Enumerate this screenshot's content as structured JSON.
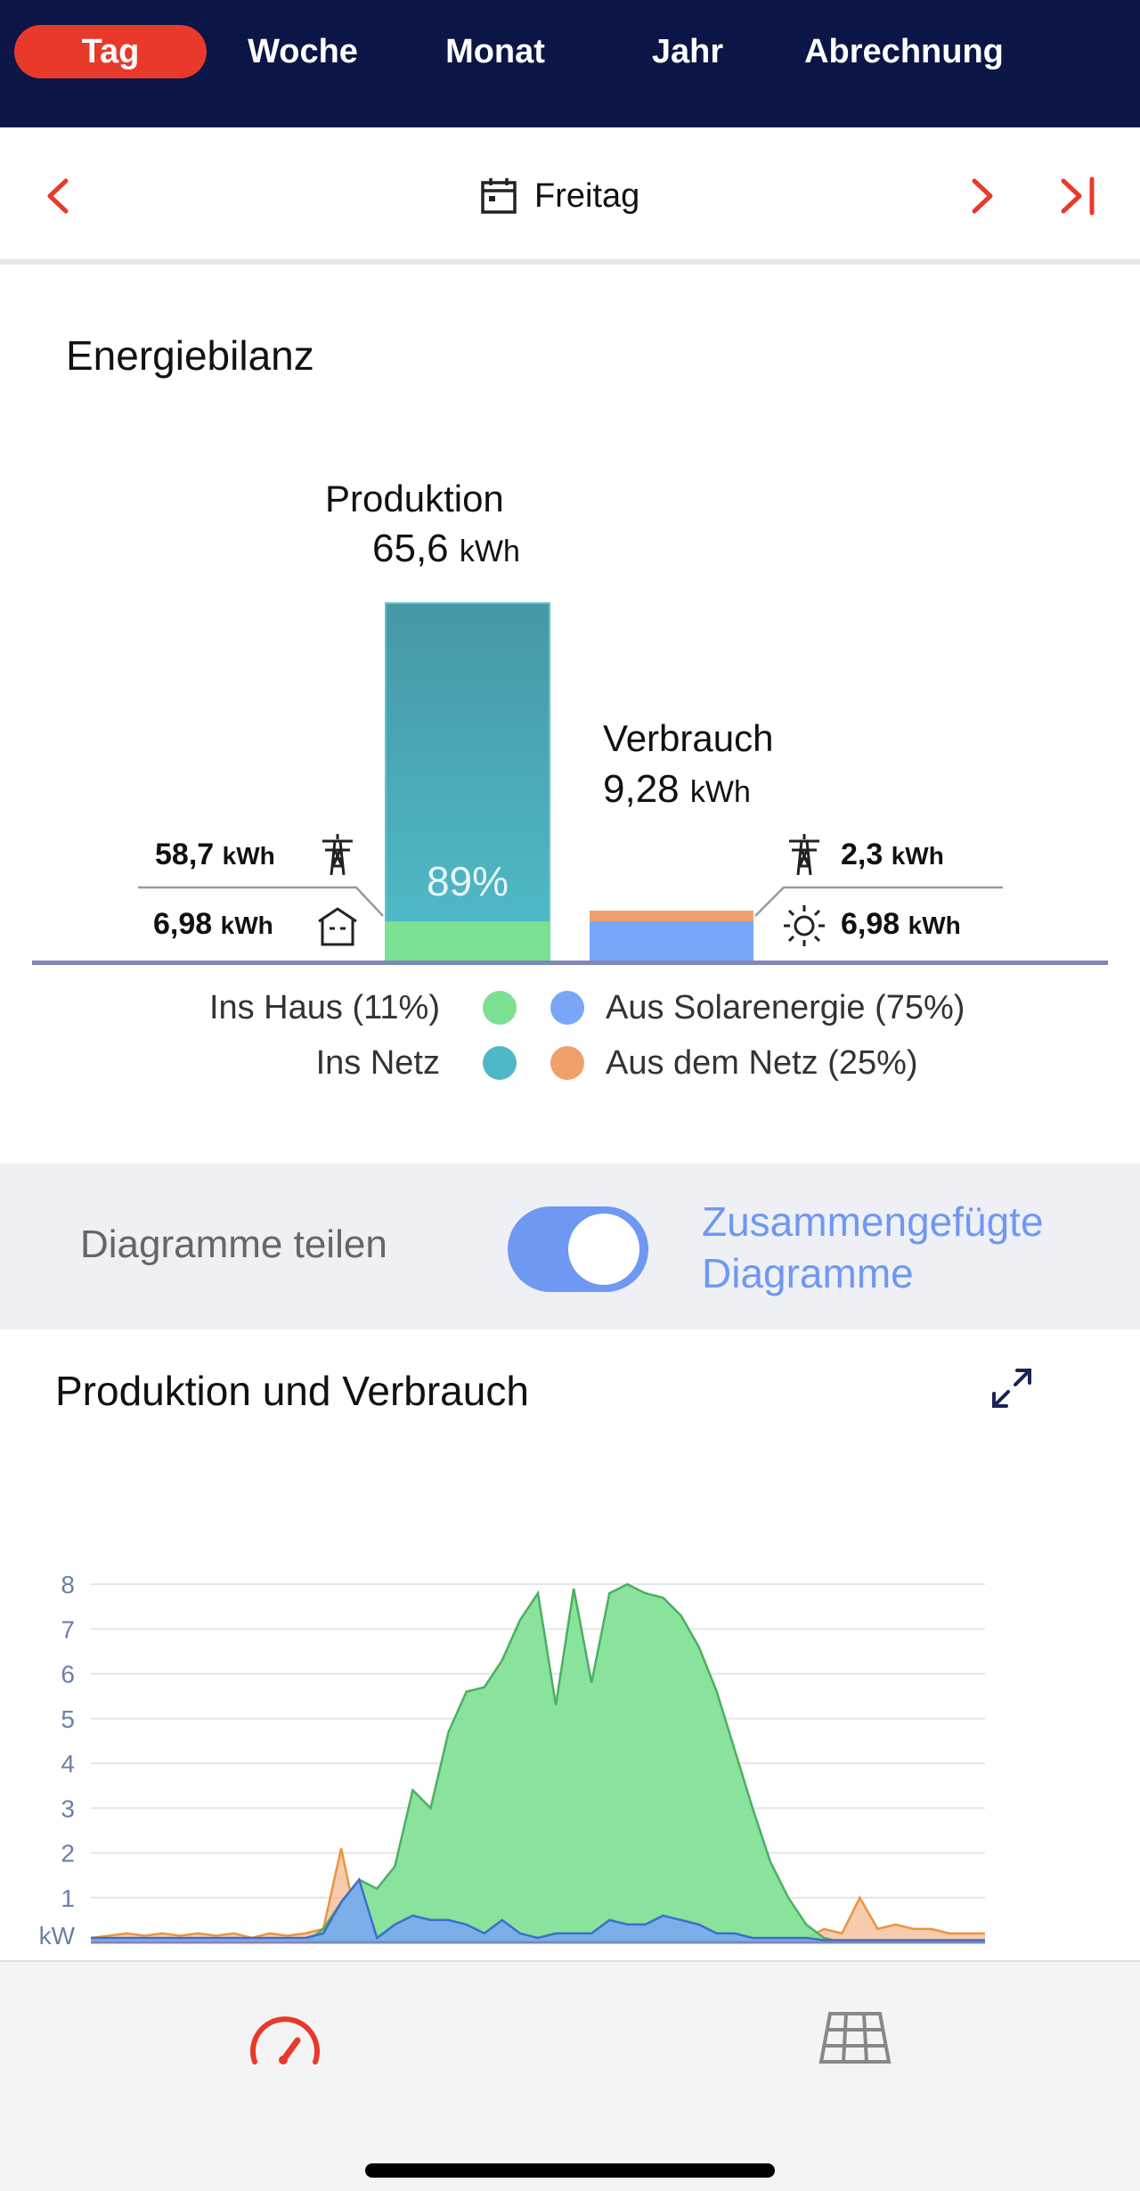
{
  "tabs": [
    {
      "label": "Tag",
      "active": true
    },
    {
      "label": "Woche"
    },
    {
      "label": "Monat"
    },
    {
      "label": "Jahr"
    },
    {
      "label": "Abrechnung"
    }
  ],
  "date_nav": {
    "label": "Freitag",
    "prev_icon": "chevron-left-icon",
    "next_icon": "chevron-right-icon",
    "last_icon": "skip-to-end-icon",
    "calendar_icon": "calendar-icon"
  },
  "energy_balance": {
    "title": "Energiebilanz",
    "production": {
      "label": "Produktion",
      "value": "65,6",
      "unit": "kWh",
      "self_use_share_label": "89%"
    },
    "consumption": {
      "label": "Verbrauch",
      "value": "9,28",
      "unit": "kWh"
    },
    "left": {
      "to_grid": {
        "value": "58,7",
        "unit": "kWh",
        "icon": "power-pylon-icon"
      },
      "to_house": {
        "value": "6,98",
        "unit": "kWh",
        "icon": "house-icon"
      }
    },
    "right": {
      "from_grid": {
        "value": "2,3",
        "unit": "kWh",
        "icon": "power-pylon-icon"
      },
      "from_solar": {
        "value": "6,98",
        "unit": "kWh",
        "icon": "sun-icon"
      }
    },
    "legend": {
      "ins_haus": "Ins Haus (11%)",
      "ins_netz": "Ins Netz",
      "aus_solar": "Aus Solarenergie (75%)",
      "aus_netz": "Aus dem Netz (25%)"
    },
    "colors": {
      "ins_haus": "#7ce092",
      "ins_netz": "#4fb8c6",
      "aus_solar": "#7aa6f7",
      "aus_netz": "#f0a06a"
    }
  },
  "toggle": {
    "left_label": "Diagramme teilen",
    "right_label_line1": "Zusammengefügte",
    "right_label_line2": "Diagramme",
    "on": true
  },
  "chart": {
    "title": "Produktion und Verbrauch",
    "expand_icon": "expand-icon"
  },
  "chart_data": {
    "type": "area",
    "ylabel": "kW",
    "ylim": [
      0,
      8
    ],
    "y_ticks": [
      "1",
      "2",
      "3",
      "4",
      "5",
      "6",
      "7",
      "8"
    ],
    "grid": true,
    "x": [
      0,
      1,
      2,
      3,
      4,
      5,
      6,
      7,
      8,
      9,
      10,
      11,
      12,
      13,
      14,
      15,
      16,
      17,
      18,
      19,
      20,
      21,
      22,
      23,
      24,
      25,
      26,
      27,
      28,
      29,
      30,
      31,
      32,
      33,
      34,
      35,
      36,
      37,
      38,
      39,
      40,
      41,
      42,
      43,
      44,
      45,
      46,
      47,
      48,
      49,
      50
    ],
    "series": [
      {
        "name": "Produktion",
        "color": "#7ce092",
        "values": [
          0,
          0,
          0,
          0,
          0,
          0,
          0,
          0,
          0,
          0,
          0,
          0,
          0,
          0.3,
          0.9,
          1.4,
          1.2,
          1.7,
          3.4,
          3.0,
          4.7,
          5.6,
          5.7,
          6.3,
          7.2,
          7.8,
          5.3,
          7.9,
          5.8,
          7.8,
          8.0,
          7.8,
          7.7,
          7.3,
          6.6,
          5.6,
          4.3,
          3.0,
          1.8,
          1.0,
          0.4,
          0.1,
          0,
          0,
          0,
          0,
          0,
          0,
          0,
          0,
          0
        ]
      },
      {
        "name": "Verbrauch aus Solarenergie",
        "color": "#7aa6f7",
        "values": [
          0.1,
          0.1,
          0.1,
          0.1,
          0.1,
          0.1,
          0.1,
          0.1,
          0.1,
          0.1,
          0.1,
          0.1,
          0.1,
          0.2,
          0.9,
          1.4,
          0.1,
          0.4,
          0.6,
          0.5,
          0.5,
          0.4,
          0.2,
          0.5,
          0.2,
          0.1,
          0.2,
          0.2,
          0.2,
          0.5,
          0.4,
          0.4,
          0.6,
          0.5,
          0.4,
          0.2,
          0.2,
          0.1,
          0.1,
          0.1,
          0.1,
          0.05,
          0.05,
          0.05,
          0.05,
          0.05,
          0.05,
          0.05,
          0.05,
          0.05,
          0.05
        ]
      },
      {
        "name": "Verbrauch aus dem Netz",
        "color": "#f0a06a",
        "values": [
          0.1,
          0.15,
          0.2,
          0.15,
          0.2,
          0.15,
          0.2,
          0.15,
          0.2,
          0.1,
          0.2,
          0.15,
          0.2,
          0.3,
          2.1,
          0.2,
          0.1,
          0.1,
          0.1,
          0.1,
          0.1,
          0.1,
          0.1,
          0.1,
          0.1,
          0.1,
          0.1,
          0.1,
          0.1,
          0.1,
          0.1,
          0.1,
          0.1,
          0.1,
          0.1,
          0.1,
          0.1,
          0.1,
          0.1,
          0.1,
          0.1,
          0.3,
          0.2,
          1.0,
          0.3,
          0.4,
          0.3,
          0.3,
          0.2,
          0.2,
          0.2
        ]
      }
    ]
  },
  "bottom_nav": {
    "dashboard_icon": "speedometer-icon",
    "solar_icon": "solar-panel-icon"
  }
}
